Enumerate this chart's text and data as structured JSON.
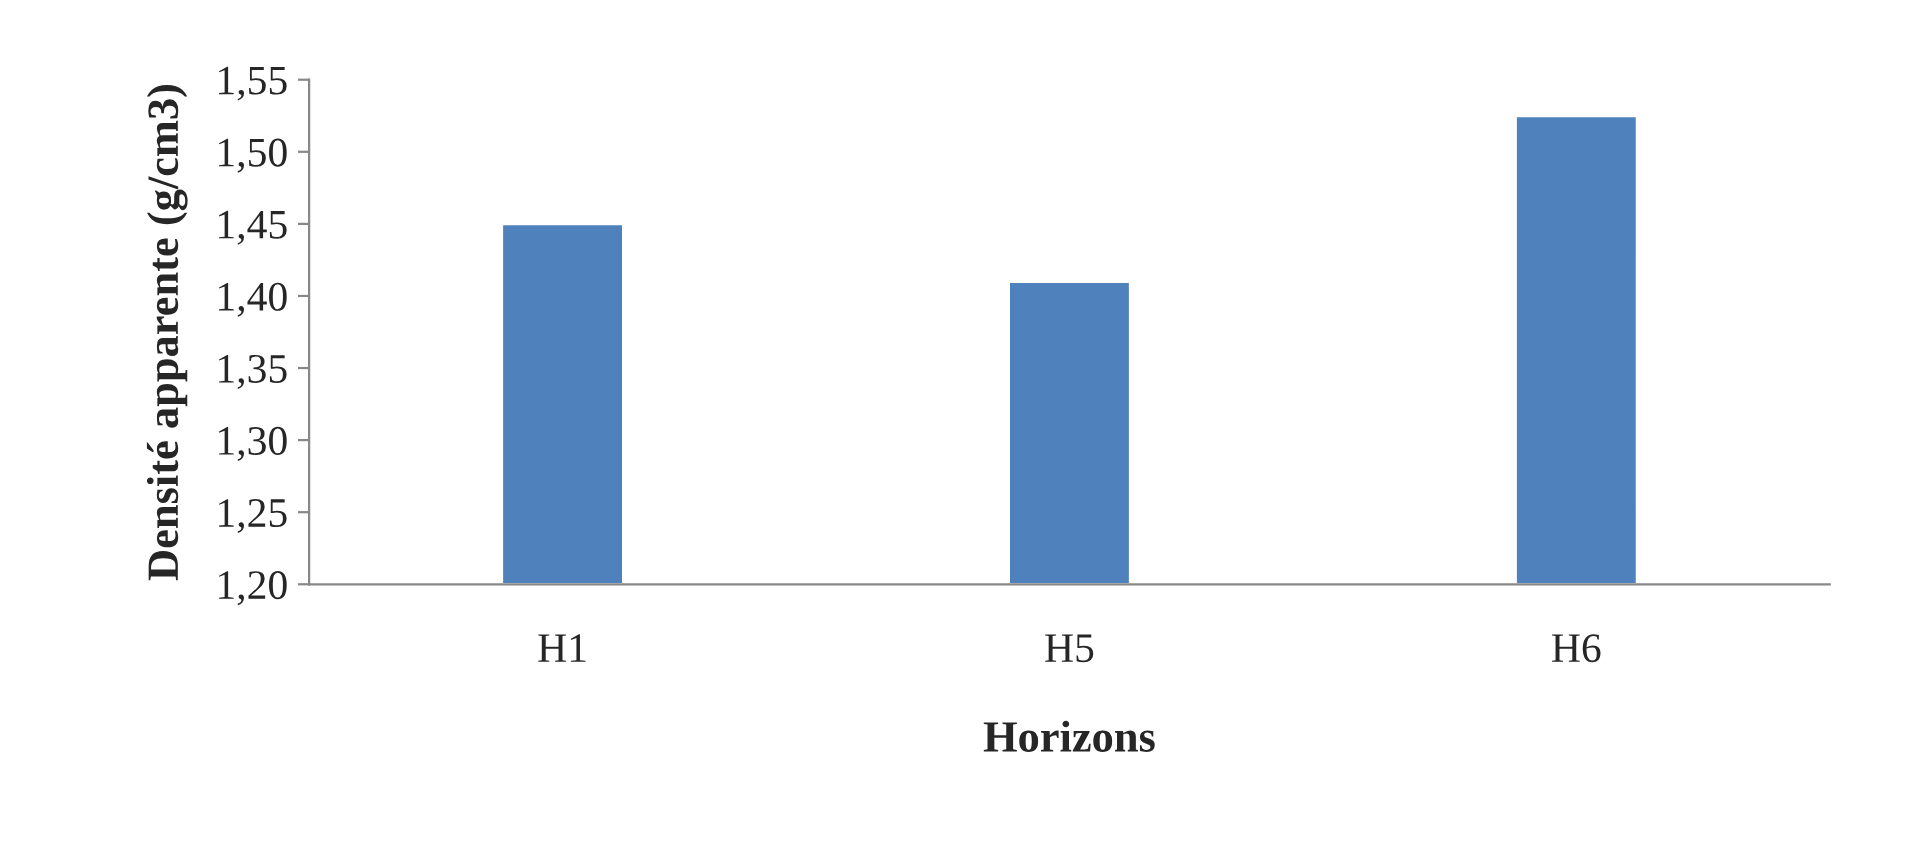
{
  "chart_data": {
    "type": "bar",
    "xlabel": "Horizons",
    "ylabel": "Densité apparente (g/cm3)",
    "categories": [
      "H1",
      "H5",
      "H6"
    ],
    "values": [
      1.45,
      1.41,
      1.525
    ],
    "color": "#4f81bd",
    "ylim": [
      1.2,
      1.55
    ],
    "yticks": [
      {
        "value": 1.2,
        "label": "1,20"
      },
      {
        "value": 1.25,
        "label": "1,25"
      },
      {
        "value": 1.3,
        "label": "1,30"
      },
      {
        "value": 1.35,
        "label": "1,35"
      },
      {
        "value": 1.4,
        "label": "1,40"
      },
      {
        "value": 1.45,
        "label": "1,45"
      },
      {
        "value": 1.5,
        "label": "1,50"
      },
      {
        "value": 1.55,
        "label": "1,55"
      }
    ],
    "grid": false,
    "legend": false
  }
}
